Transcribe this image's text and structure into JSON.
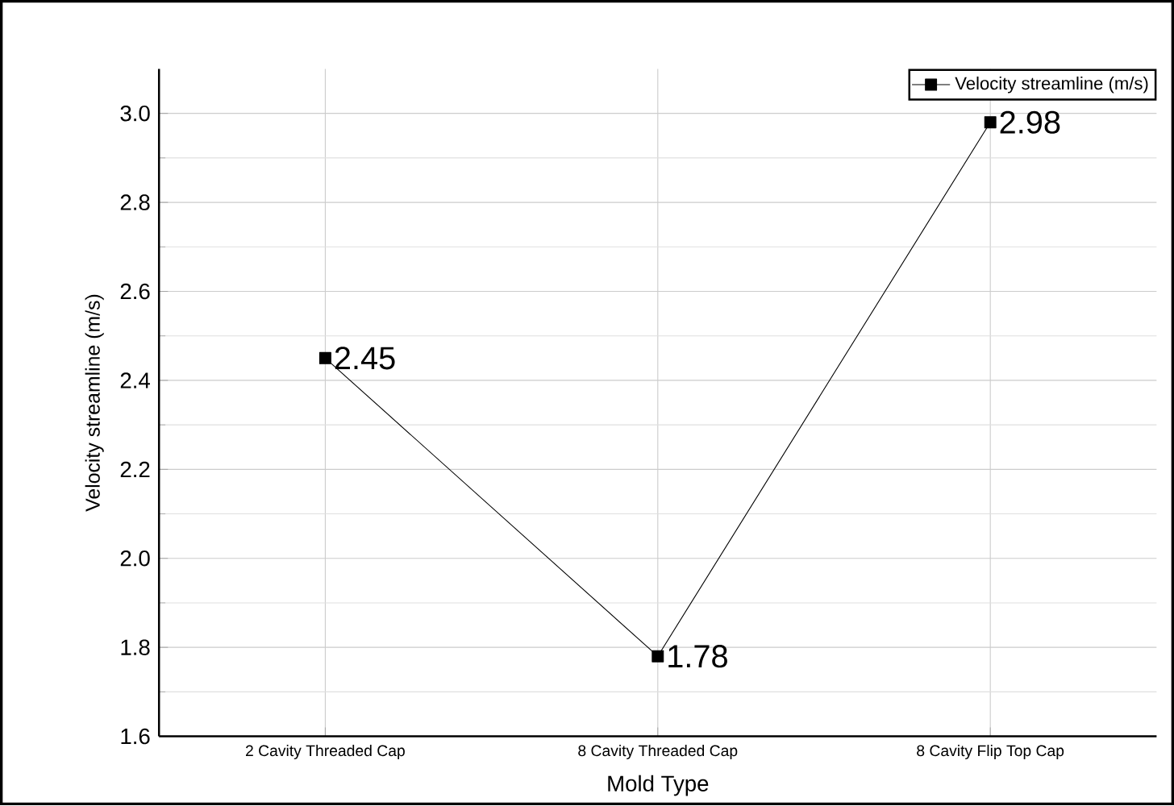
{
  "chart_data": {
    "type": "line",
    "xlabel": "Mold Type",
    "ylabel": "Velocity streamline (m/s)",
    "categories": [
      "2 Cavity Threaded Cap",
      "8 Cavity Threaded Cap",
      "8 Cavity Flip Top Cap"
    ],
    "series": [
      {
        "name": "Velocity streamline (m/s)",
        "color": "#000000",
        "values": [
          2.45,
          1.78,
          2.98
        ]
      }
    ],
    "ylim": [
      1.6,
      3.1
    ],
    "yticks": [
      1.6,
      1.8,
      {
        "value": 2.0,
        "label": "2.0"
      },
      2.2,
      2.4,
      2.6,
      2.8,
      {
        "value": 3.0,
        "label": "3.0"
      }
    ],
    "grid": true,
    "legend": "top right",
    "marker": "square",
    "line_style": "solid",
    "data_labels": true
  }
}
